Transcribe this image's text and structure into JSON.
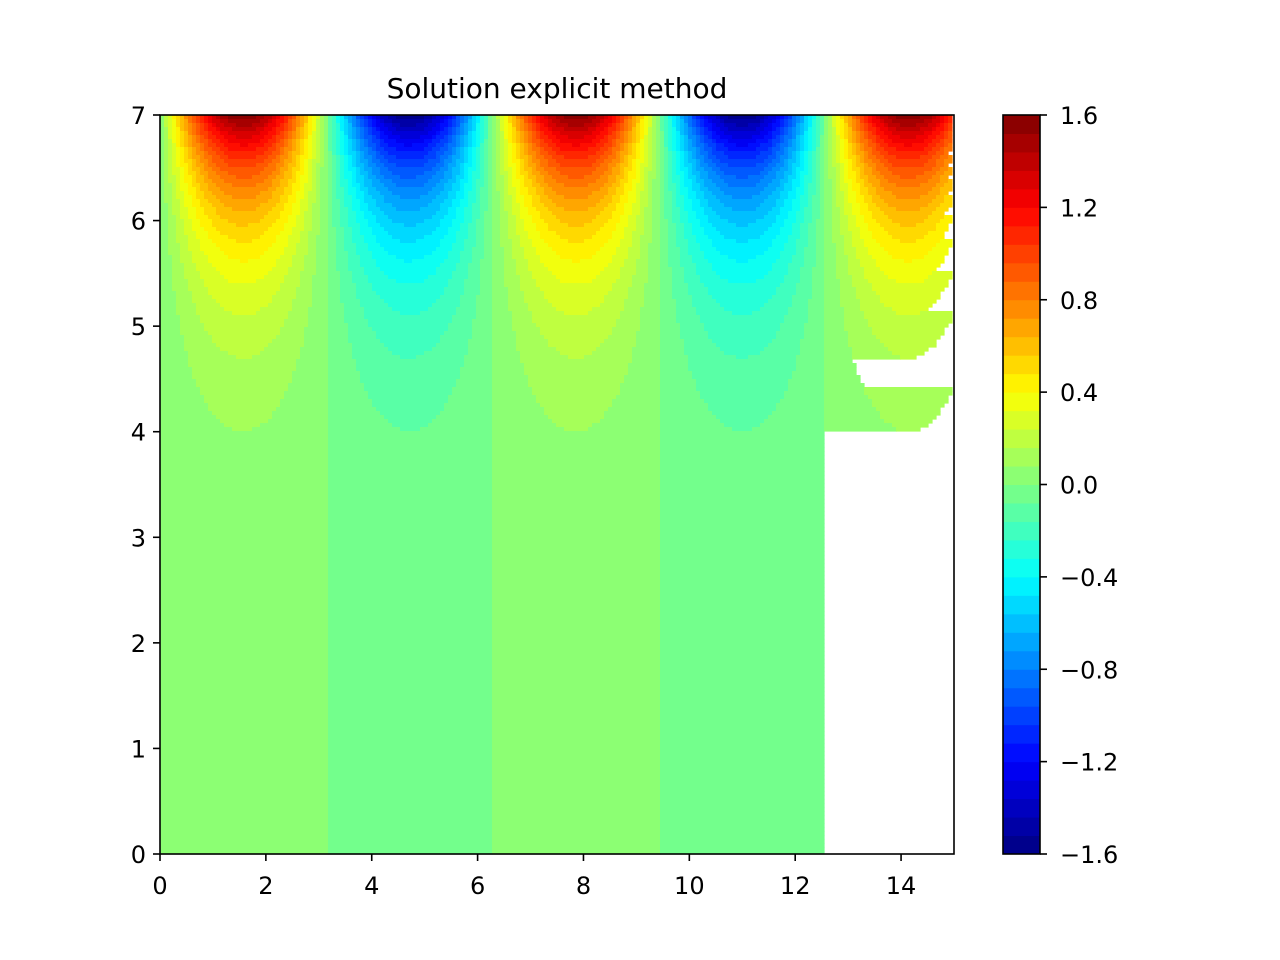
{
  "chart_data": {
    "type": "heatmap",
    "subtype": "filled-contour",
    "title": "Solution explicit method",
    "xlabel": "",
    "ylabel": "",
    "xlim": [
      0,
      15
    ],
    "ylim": [
      0,
      7
    ],
    "x_ticks": [
      0,
      2,
      4,
      6,
      8,
      10,
      12,
      14
    ],
    "x_tick_labels": [
      "0",
      "2",
      "4",
      "6",
      "8",
      "10",
      "12",
      "14"
    ],
    "y_ticks": [
      0,
      1,
      2,
      3,
      4,
      5,
      6,
      7
    ],
    "y_tick_labels": [
      "0",
      "1",
      "2",
      "3",
      "4",
      "5",
      "6",
      "7"
    ],
    "colormap": "jet",
    "grid": false,
    "function": "u(x,y) = sin(x) * sinh(y) / sinh(7) * 1.6",
    "peaks": [
      {
        "x": 1.57,
        "y": 7,
        "value": 1.6
      },
      {
        "x": 4.71,
        "y": 7,
        "value": -1.6
      },
      {
        "x": 7.85,
        "y": 7,
        "value": 1.6
      },
      {
        "x": 11.0,
        "y": 7,
        "value": -1.6
      },
      {
        "x": 14.14,
        "y": 7,
        "value": 1.6
      }
    ],
    "colorbar": {
      "vmin": -1.6,
      "vmax": 1.6,
      "levels": 40,
      "ticks": [
        1.6,
        1.2,
        0.8,
        0.4,
        0.0,
        -0.4,
        -0.8,
        -1.2,
        -1.6
      ],
      "tick_labels": [
        "1.6",
        "1.2",
        "0.8",
        "0.4",
        "0.0",
        "−0.4",
        "−0.8",
        "−1.2",
        "−1.6"
      ]
    }
  }
}
